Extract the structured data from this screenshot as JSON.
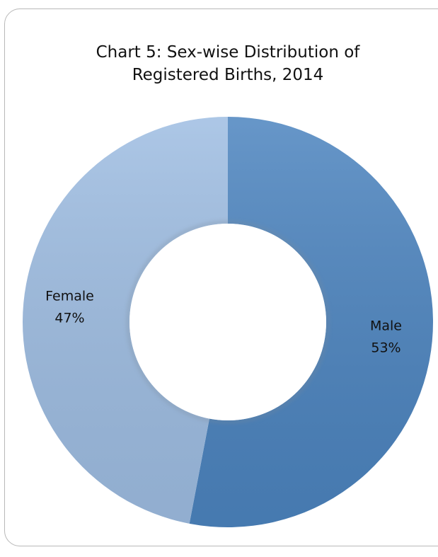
{
  "chart_data": {
    "type": "donut",
    "title": "Chart 5: Sex-wise Distribution of Registered Births, 2014",
    "categories": [
      "Male",
      "Female"
    ],
    "values": [
      53,
      47
    ],
    "value_labels": [
      "53%",
      "47%"
    ],
    "colors": [
      "#4c84bf",
      "#9ebde2"
    ]
  }
}
